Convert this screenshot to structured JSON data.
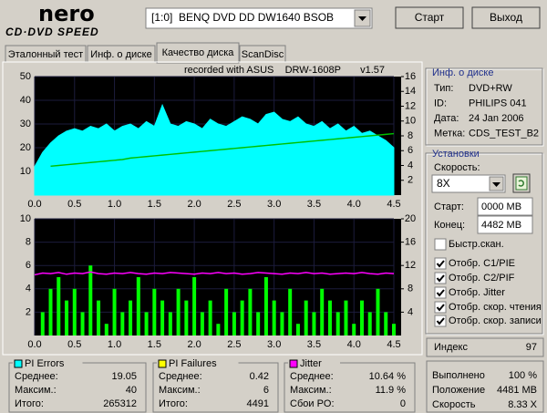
{
  "header": {
    "logo": "nero",
    "logo_sub": "CD·DVD SPEED",
    "drive": "[1:0]  BENQ DVD DD DW1640 BSOB",
    "start_button": "Старт",
    "exit_button": "Выход"
  },
  "tabs": [
    "Эталонный тест",
    "Инф. о диске",
    "Качество диска",
    "ScanDisc"
  ],
  "active_tab": 2,
  "chart_data": [
    {
      "type": "combo",
      "title": "recorded with ASUS    DRW-1608P       v1.57",
      "grid": true,
      "x": [
        0,
        0.1,
        0.2,
        0.3,
        0.4,
        0.5,
        0.6,
        0.7,
        0.8,
        0.9,
        1,
        1.1,
        1.2,
        1.3,
        1.4,
        1.5,
        1.6,
        1.7,
        1.8,
        1.9,
        2,
        2.1,
        2.2,
        2.3,
        2.4,
        2.5,
        2.6,
        2.7,
        2.8,
        2.9,
        3,
        3.1,
        3.2,
        3.3,
        3.4,
        3.5,
        3.6,
        3.7,
        3.8,
        3.9,
        4,
        4.1,
        4.2,
        4.3,
        4.4,
        4.5
      ],
      "xlim": [
        0,
        4.5
      ],
      "xticks": [
        {
          "value": 0,
          "label": "0.0"
        },
        0.5,
        {
          "value": 1,
          "label": "1.0"
        },
        1.5,
        {
          "value": 2,
          "label": "2.0"
        },
        2.5,
        {
          "value": 3,
          "label": "3.0"
        },
        3.5,
        {
          "value": 4,
          "label": "4.0"
        },
        4.5
      ],
      "ylim": [
        0,
        50
      ],
      "yticks": [
        10,
        20,
        30,
        40,
        50
      ],
      "y2lim": [
        0,
        16
      ],
      "y2ticks": [
        2,
        4,
        6,
        8,
        10,
        12,
        14,
        16
      ],
      "series": [
        {
          "name": "PI Errors",
          "type": "area",
          "color": "#00ffff",
          "values": [
            12,
            18,
            22,
            25,
            27,
            28,
            27,
            29,
            28,
            30,
            27,
            29,
            30,
            28,
            31,
            29,
            38,
            30,
            29,
            31,
            30,
            28,
            32,
            30,
            29,
            31,
            33,
            32,
            30,
            34,
            35,
            32,
            31,
            33,
            30,
            29,
            31,
            28,
            30,
            27,
            29,
            26,
            27,
            25,
            23,
            20
          ]
        },
        {
          "name": "Speed",
          "type": "line",
          "axis": "y2",
          "color": "#00c000",
          "values": [
            null,
            null,
            3.9,
            4.0,
            4.1,
            4.2,
            4.3,
            4.4,
            4.5,
            4.6,
            4.7,
            4.8,
            5.0,
            5.1,
            5.2,
            5.3,
            5.4,
            5.5,
            5.6,
            5.7,
            5.8,
            5.9,
            6.0,
            6.1,
            6.2,
            6.3,
            6.4,
            6.5,
            6.6,
            6.7,
            6.8,
            6.9,
            7.0,
            7.1,
            7.2,
            7.3,
            7.4,
            7.5,
            7.6,
            7.7,
            7.8,
            7.9,
            8.0,
            8.1,
            8.2,
            8.3
          ]
        }
      ]
    },
    {
      "type": "combo",
      "grid": true,
      "x": [
        0,
        0.1,
        0.2,
        0.3,
        0.4,
        0.5,
        0.6,
        0.7,
        0.8,
        0.9,
        1,
        1.1,
        1.2,
        1.3,
        1.4,
        1.5,
        1.6,
        1.7,
        1.8,
        1.9,
        2,
        2.1,
        2.2,
        2.3,
        2.4,
        2.5,
        2.6,
        2.7,
        2.8,
        2.9,
        3,
        3.1,
        3.2,
        3.3,
        3.4,
        3.5,
        3.6,
        3.7,
        3.8,
        3.9,
        4,
        4.1,
        4.2,
        4.3,
        4.4,
        4.5
      ],
      "xlim": [
        0,
        4.5
      ],
      "xticks": [
        {
          "value": 0,
          "label": "0.0"
        },
        0.5,
        {
          "value": 1,
          "label": "1.0"
        },
        1.5,
        {
          "value": 2,
          "label": "2.0"
        },
        2.5,
        {
          "value": 3,
          "label": "3.0"
        },
        3.5,
        {
          "value": 4,
          "label": "4.0"
        },
        4.5
      ],
      "ylim": [
        0,
        10
      ],
      "yticks": [
        2,
        4,
        6,
        8,
        10
      ],
      "y2lim": [
        0,
        20
      ],
      "y2ticks": [
        4,
        8,
        12,
        16,
        20
      ],
      "series": [
        {
          "name": "PI Failures",
          "type": "bar",
          "color": "#00ff00",
          "values": [
            0,
            2,
            4,
            5,
            3,
            4,
            2,
            6,
            3,
            1,
            4,
            2,
            3,
            5,
            2,
            4,
            3,
            2,
            4,
            3,
            5,
            2,
            3,
            1,
            4,
            2,
            3,
            4,
            2,
            5,
            3,
            2,
            4,
            1,
            3,
            2,
            4,
            3,
            2,
            3,
            1,
            3,
            2,
            4,
            2,
            1
          ]
        },
        {
          "name": "Jitter",
          "type": "line",
          "axis": "y2",
          "color": "#ff00ff",
          "values": [
            10.4,
            10.7,
            10.6,
            10.8,
            10.5,
            10.7,
            10.6,
            10.9,
            10.6,
            10.5,
            10.7,
            10.6,
            10.8,
            10.6,
            10.5,
            10.7,
            10.6,
            10.8,
            10.7,
            10.6,
            10.5,
            10.7,
            10.6,
            10.8,
            10.6,
            10.7,
            10.5,
            10.6,
            10.8,
            10.7,
            10.6,
            10.5,
            10.7,
            10.6,
            10.8,
            10.6,
            10.7,
            10.5,
            10.6,
            10.7,
            10.6,
            10.8,
            10.6,
            10.5,
            10.7,
            10.6
          ]
        }
      ]
    }
  ],
  "disc_info": {
    "title": "Инф. о диске",
    "rows": [
      [
        "Тип:",
        "DVD+RW"
      ],
      [
        "ID:",
        "PHILIPS 041"
      ],
      [
        "Дата:",
        "24 Jan 2006"
      ],
      [
        "Метка:",
        "CDS_TEST_B2"
      ]
    ]
  },
  "settings_panel": {
    "title": "Установки",
    "speed_label": "Скорость:",
    "speed": "8X",
    "start_label": "Старт:",
    "start": "0000 MB",
    "end_label": "Конец:",
    "end": "4482 MB",
    "checks": [
      {
        "label": "Быстр.скан.",
        "checked": false
      },
      {
        "label": "Отобр. C1/PIE",
        "checked": true
      },
      {
        "label": "Отобр. C2/PIF",
        "checked": true
      },
      {
        "label": "Отобр. Jitter",
        "checked": true
      },
      {
        "label": "Отобр. скор. чтения",
        "checked": true
      },
      {
        "label": "Отобр. скор. записи",
        "checked": true
      }
    ]
  },
  "index": {
    "label": "Индекс",
    "value": "97"
  },
  "progress": [
    [
      "Выполнено",
      "100 %"
    ],
    [
      "Положение",
      "4481 MB"
    ],
    [
      "Скорость",
      "8.33 X"
    ]
  ],
  "stats": [
    {
      "title": "PI Errors",
      "color": "#00ffff",
      "rows": [
        [
          "Среднее:",
          "19.05"
        ],
        [
          "Максим.:",
          "40"
        ],
        [
          "Итого:",
          "265312"
        ]
      ]
    },
    {
      "title": "PI Failures",
      "color": "#ffff00",
      "rows": [
        [
          "Среднее:",
          "0.42"
        ],
        [
          "Максим.:",
          "6"
        ],
        [
          "Итого:",
          "4491"
        ]
      ]
    },
    {
      "title": "Jitter",
      "color": "#ff00ff",
      "rows": [
        [
          "Среднее:",
          "10.64 %"
        ],
        [
          "Максим.:",
          "11.9 %"
        ],
        [
          "Сбои PO:",
          "0"
        ]
      ]
    }
  ]
}
